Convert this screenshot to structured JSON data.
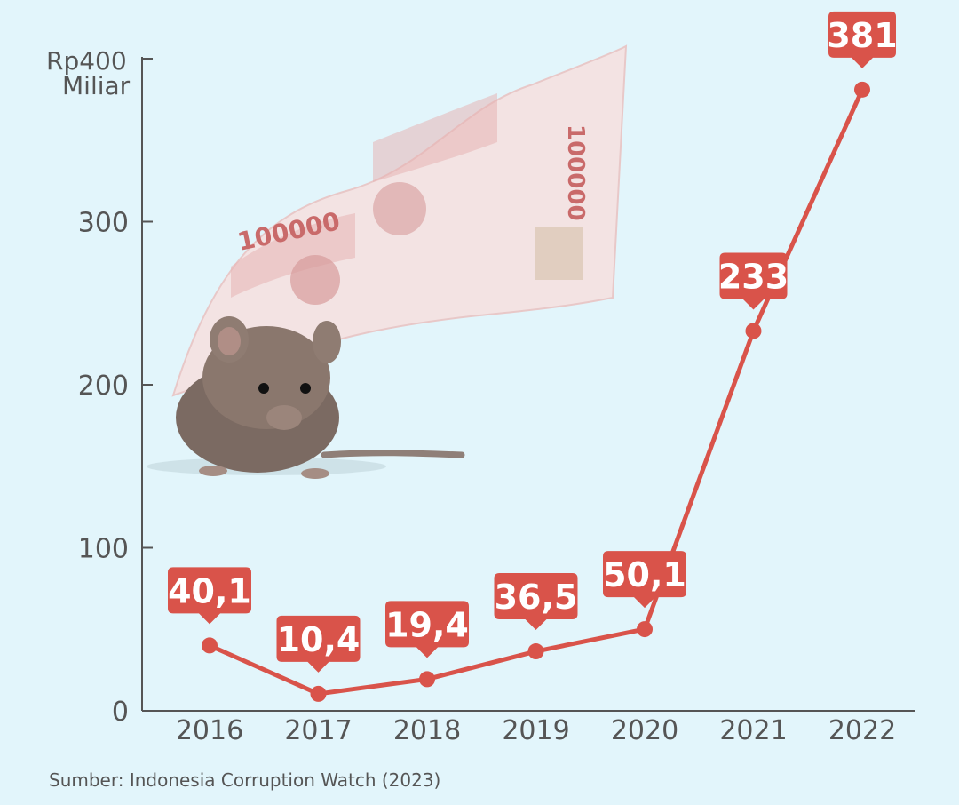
{
  "chart_data": {
    "type": "line",
    "title": "",
    "xlabel": "",
    "ylabel": "",
    "y_unit_line1": "Rp400",
    "y_unit_line2": "Miliar",
    "categories": [
      "2016",
      "2017",
      "2018",
      "2019",
      "2020",
      "2021",
      "2022"
    ],
    "series": [
      {
        "values": [
          40.1,
          10.4,
          19.4,
          36.5,
          50.1,
          233,
          381
        ],
        "labels": [
          "40,1",
          "10,4",
          "19,4",
          "36,5",
          "50,1",
          "233",
          "381"
        ]
      }
    ],
    "ylim": [
      0,
      400
    ],
    "yticks": [
      {
        "value": 0,
        "label": "0"
      },
      {
        "value": 100,
        "label": "100"
      },
      {
        "value": 200,
        "label": "200"
      },
      {
        "value": 300,
        "label": "300"
      }
    ],
    "grid": false,
    "colors": {
      "line": "#d9534a",
      "axis": "#555555",
      "background": "#e2f5fb"
    },
    "illustration": "mouse-and-rupiah-banknote",
    "source": "Sumber: Indonesia Corruption Watch (2023)"
  }
}
